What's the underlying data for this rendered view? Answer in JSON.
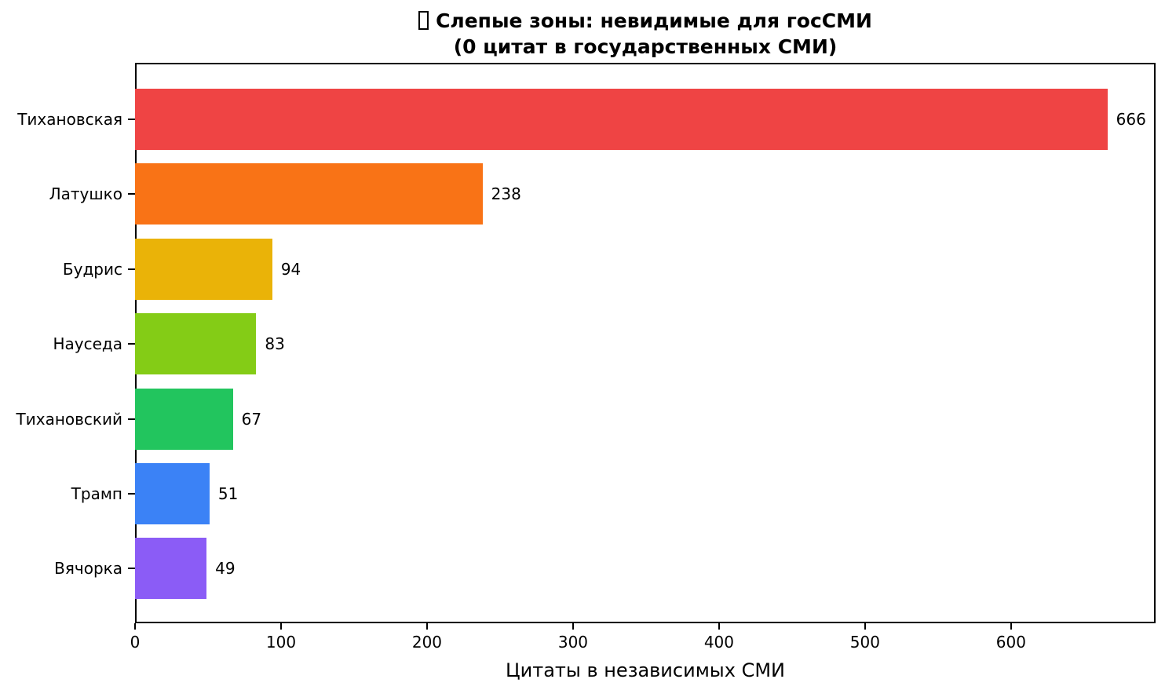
{
  "chart_data": {
    "type": "bar",
    "orientation": "horizontal",
    "title_line1": "Слепые зоны: невидимые для госСМИ",
    "title_line2": "(0 цитат в государственных СМИ)",
    "title_icon": "missing-glyph-box",
    "xlabel": "Цитаты в независимых СМИ",
    "categories": [
      "Тихановская",
      "Латушко",
      "Будрис",
      "Науседа",
      "Тихановский",
      "Трамп",
      "Вячорка"
    ],
    "values": [
      666,
      238,
      94,
      83,
      67,
      51,
      49
    ],
    "bar_colors": [
      "#ef4444",
      "#f97316",
      "#eab308",
      "#84cc16",
      "#22c55e",
      "#3b82f6",
      "#8b5cf6"
    ],
    "value_labels": [
      "666",
      "238",
      "94",
      "83",
      "67",
      "51",
      "49"
    ],
    "xticks": [
      0,
      100,
      200,
      300,
      400,
      500,
      600
    ],
    "xtick_labels": [
      "0",
      "100",
      "200",
      "300",
      "400",
      "500",
      "600"
    ],
    "xlim": [
      0,
      699
    ],
    "grid": false,
    "legend": null,
    "background_color": "#ffffff",
    "spine_color": "#000000",
    "text_color": "#000000"
  }
}
